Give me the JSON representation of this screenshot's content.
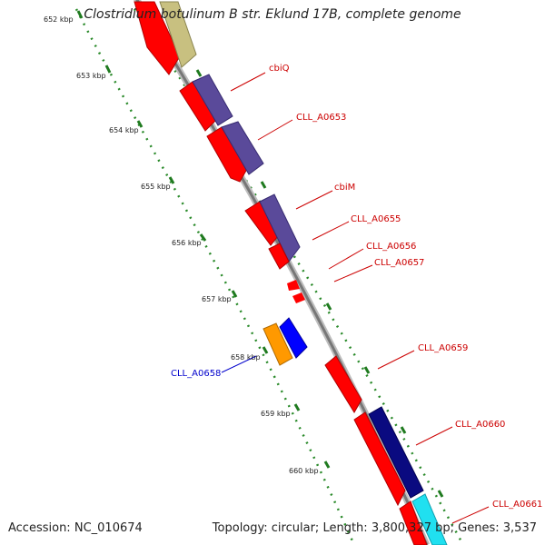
{
  "title": "Clostridium botulinum B str. Eklund 17B, complete genome",
  "footer": {
    "accession_label": "Accession:",
    "accession": "NC_010674",
    "topology_label": "Topology:",
    "topology": "circular",
    "length_label": "Length:",
    "length": "3,800,327 bp",
    "genes_label": "Genes:",
    "genes": "3,537"
  },
  "ticks": [
    "652 kbp",
    "653 kbp",
    "654 kbp",
    "655 kbp",
    "656 kbp",
    "657 kbp",
    "658 kbp",
    "659 kbp",
    "660 kbp"
  ],
  "gene_labels": [
    {
      "name": "cbiQ",
      "color": "#cc0000"
    },
    {
      "name": "CLL_A0653",
      "color": "#cc0000"
    },
    {
      "name": "cbiM",
      "color": "#cc0000"
    },
    {
      "name": "CLL_A0655",
      "color": "#cc0000"
    },
    {
      "name": "CLL_A0656",
      "color": "#cc0000"
    },
    {
      "name": "CLL_A0657",
      "color": "#cc0000"
    },
    {
      "name": "CLL_A0659",
      "color": "#cc0000"
    },
    {
      "name": "CLL_A0660",
      "color": "#cc0000"
    },
    {
      "name": "CLL_A0661",
      "color": "#cc0000"
    },
    {
      "name": "CLL_A0658",
      "color": "#0000cc"
    }
  ],
  "colors": {
    "cds": "#ff0000",
    "cog_olive": "#c8c080",
    "cog_slate": "#5a4a9a",
    "cog_navy": "#0a0a80",
    "cog_cyan": "#20e0f0",
    "cog_orange": "#ff9900",
    "cog_blue": "#0000ff",
    "tick_green": "#2a7a2a",
    "backbone": "#888888"
  }
}
